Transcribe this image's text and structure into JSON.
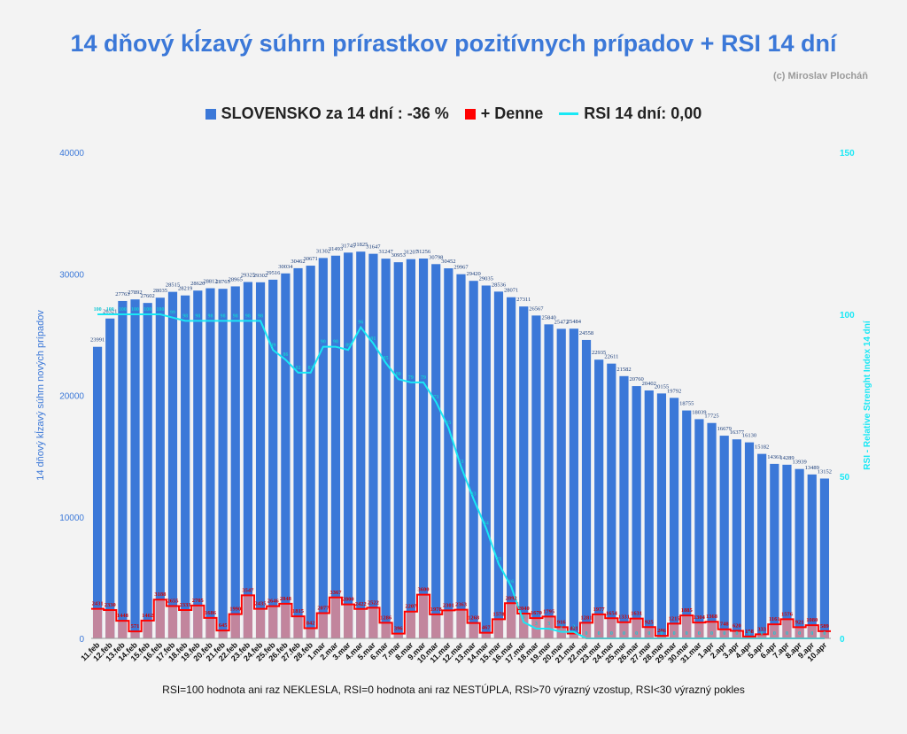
{
  "title": "14 dňový kĺzavý súhrn prírastkov pozitívnych prípadov + RSI 14 dní",
  "copyright": "(c) Miroslav Plocháň",
  "footnote": "RSI=100 hodnota ani raz NEKLESLA, RSI=0 hodnota ani raz NESTÚPLA, RSI>70 výrazný vzostup, RSI<30 výrazný pokles",
  "chart_data": {
    "type": "bar",
    "legend_position": "top",
    "grid": false,
    "ylabel": "14 dňový kĺzavý súhrn nových prípadov",
    "y2label": "RSI - Relative Strenght Index 14 dní",
    "ylim": [
      0,
      40000
    ],
    "y2lim": [
      0,
      150
    ],
    "yticks": [
      "0",
      "10000",
      "20000",
      "30000",
      "40000"
    ],
    "y2ticks": [
      "0",
      "50",
      "100",
      "150"
    ],
    "categories": [
      "11.feb",
      "12.feb",
      "13.feb",
      "14.feb",
      "15.feb",
      "16.feb",
      "17.feb",
      "18.feb",
      "19.feb",
      "20.feb",
      "21.feb",
      "22.feb",
      "23.feb",
      "24.feb",
      "25.feb",
      "26.feb",
      "27.feb",
      "28.feb",
      "1.mar",
      "2.mar",
      "3.mar",
      "4.mar",
      "5.mar",
      "6.mar",
      "7.mar",
      "8.mar",
      "9.mar",
      "10.mar",
      "11.mar",
      "12.mar",
      "13.mar",
      "14.mar",
      "15.mar",
      "16.mar",
      "17.mar",
      "18.mar",
      "19.mar",
      "20.mar",
      "21.mar",
      "22.mar",
      "23.mar",
      "24.mar",
      "25.mar",
      "26.mar",
      "27.mar",
      "28.mar",
      "29.mar",
      "30.mar",
      "31.mar",
      "1.apr",
      "2.apr",
      "3.apr",
      "4.apr",
      "5.apr",
      "6.apr",
      "7.apr",
      "8.apr",
      "9.apr",
      "10.apr"
    ],
    "series": [
      {
        "name": "SLOVENSKO za 14 dní : -36 %",
        "color": "#3b78d8",
        "values": [
          23991,
          26321,
          27763,
          27892,
          27602,
          28035,
          28515,
          28219,
          28620,
          28812,
          28765,
          28965,
          29325,
          29302,
          29516,
          30034,
          30462,
          30671,
          31302,
          31493,
          31745,
          31825,
          31647,
          31247,
          30953,
          31207,
          31256,
          30798,
          30452,
          29967,
          29420,
          29035,
          28536,
          28071,
          27311,
          26567,
          25840,
          25472,
          25484,
          24558,
          22935,
          22611,
          21582,
          20760,
          20402,
          20155,
          19792,
          18755,
          18039,
          17725,
          16679,
          16377,
          16130,
          15182,
          14361,
          14289,
          13939,
          13489,
          13152
        ]
      },
      {
        "name": "+ Denne",
        "color": "#ff0000",
        "values": [
          2431,
          2330,
          1448,
          571,
          1462,
          3188,
          2655,
          2333,
          2705,
          1686,
          645,
          1990,
          3547,
          2435,
          2646,
          2848,
          1815,
          842,
          2077,
          3367,
          2800,
          2422,
          2522,
          1286,
          396,
          2207,
          3600,
          1978,
          2301,
          2363,
          1268,
          467,
          1578,
          2892,
          2040,
          1670,
          1795,
          916,
          401,
          1281,
          1977,
          1654,
          1331,
          1631,
          925,
          206,
          1215,
          1885,
          1304,
          1368,
          748,
          620,
          158,
          333,
          1161,
          1576,
          921,
          1080,
          589
        ]
      },
      {
        "name": "RSI 14 dní: 0,00",
        "color": "#19e8f5",
        "axis": "right",
        "values": [
          100,
          100,
          100,
          100,
          100,
          100,
          99,
          98,
          98,
          98,
          98,
          98,
          98,
          98,
          89,
          86,
          82,
          82,
          90,
          90,
          89,
          96,
          91,
          85,
          80,
          79,
          79,
          73,
          65,
          53,
          43,
          34,
          23,
          16,
          5,
          3,
          3,
          2,
          2,
          0,
          0,
          0,
          0,
          0,
          0,
          0,
          0,
          0,
          0,
          0,
          0,
          0,
          0,
          0,
          0,
          0,
          0,
          0,
          0
        ]
      }
    ]
  }
}
